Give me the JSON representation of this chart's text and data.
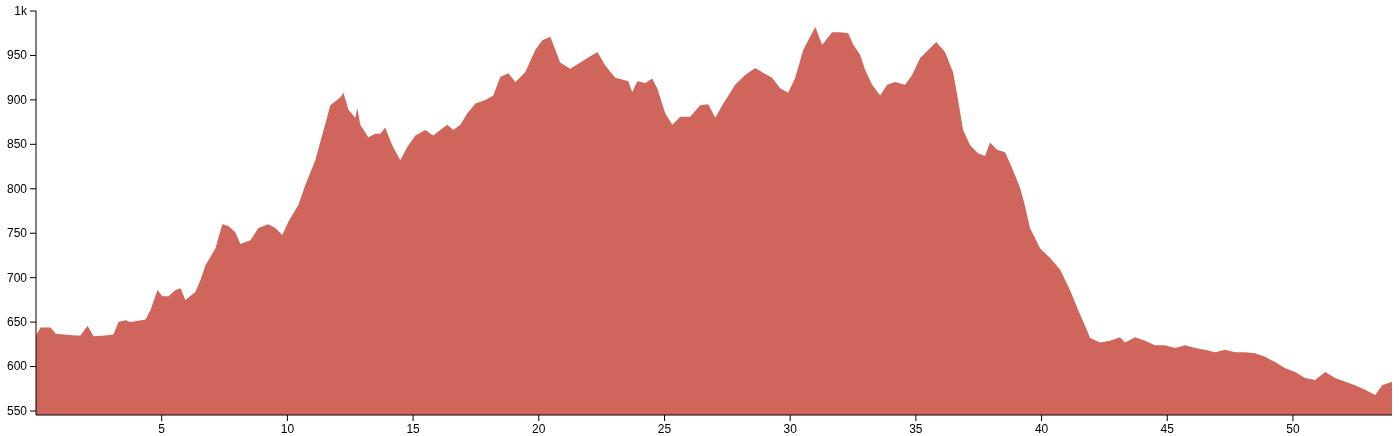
{
  "chart_data": {
    "type": "area",
    "color": "#d0665b",
    "x": [
      0,
      0.18,
      0.58,
      0.78,
      1.57,
      1.77,
      2.05,
      2.29,
      2.76,
      3.08,
      3.28,
      3.56,
      3.76,
      4.36,
      4.56,
      4.83,
      5.03,
      5.27,
      5.55,
      5.75,
      5.94,
      6.34,
      6.54,
      6.74,
      7.14,
      7.41,
      7.65,
      7.93,
      8.13,
      8.53,
      8.85,
      9.24,
      9.52,
      9.8,
      10.04,
      10.44,
      10.71,
      11.11,
      11.71,
      12.11,
      12.23,
      12.43,
      12.7,
      12.78,
      12.9,
      13.22,
      13.5,
      13.7,
      13.89,
      14.17,
      14.49,
      14.77,
      15.09,
      15.49,
      15.8,
      16.08,
      16.36,
      16.6,
      16.88,
      17.16,
      17.48,
      17.87,
      18.19,
      18.47,
      18.79,
      19.07,
      19.46,
      19.86,
      20.14,
      20.46,
      20.85,
      21.25,
      21.65,
      22.05,
      22.33,
      22.64,
      23.04,
      23.32,
      23.56,
      23.72,
      23.92,
      24.24,
      24.51,
      24.71,
      25.03,
      25.31,
      25.63,
      26.02,
      26.42,
      26.74,
      27.02,
      27.3,
      27.81,
      28.21,
      28.61,
      29.01,
      29.28,
      29.6,
      29.92,
      30.2,
      30.52,
      30.72,
      31,
      31.27,
      31.67,
      31.99,
      32.31,
      32.51,
      32.78,
      32.98,
      33.26,
      33.58,
      33.86,
      34.17,
      34.57,
      34.85,
      35.17,
      35.49,
      35.81,
      36.16,
      36.48,
      36.68,
      36.88,
      37.16,
      37.47,
      37.75,
      37.95,
      38.23,
      38.55,
      38.83,
      39.15,
      39.34,
      39.54,
      39.94,
      40.34,
      40.74,
      41.13,
      41.45,
      41.73,
      41.93,
      42.33,
      42.72,
      43.12,
      43.32,
      43.72,
      44.12,
      44.51,
      44.91,
      45.31,
      45.71,
      46.11,
      46.5,
      46.9,
      47.3,
      47.7,
      48.1,
      48.49,
      48.89,
      49.29,
      49.69,
      50.09,
      50.48,
      50.88,
      51.28,
      51.68,
      52.08,
      52.47,
      52.87,
      53.27,
      53.55,
      53.94
    ],
    "values": [
      635,
      644,
      644,
      637,
      635,
      635,
      646,
      634,
      635,
      636,
      650,
      652,
      650,
      653,
      664,
      686,
      679,
      679,
      686,
      688,
      675,
      684,
      697,
      714,
      733,
      760,
      758,
      751,
      738,
      742,
      756,
      760,
      756,
      748,
      763,
      782,
      804,
      832,
      894,
      903,
      908,
      889,
      880,
      891,
      872,
      858,
      862,
      862,
      869,
      849,
      832,
      847,
      860,
      866,
      860,
      866,
      872,
      866,
      872,
      885,
      896,
      900,
      905,
      926,
      930,
      920,
      931,
      956,
      967,
      971,
      942,
      935,
      942,
      949,
      954,
      939,
      925,
      923,
      921,
      909,
      921,
      919,
      924,
      913,
      885,
      872,
      881,
      881,
      894,
      895,
      880,
      894,
      917,
      928,
      936,
      929,
      925,
      913,
      908,
      925,
      956,
      967,
      982,
      962,
      976,
      976,
      975,
      962,
      951,
      934,
      917,
      905,
      917,
      920,
      917,
      928,
      947,
      956,
      965,
      954,
      931,
      900,
      866,
      849,
      840,
      837,
      852,
      844,
      841,
      823,
      801,
      781,
      756,
      733,
      722,
      709,
      686,
      664,
      646,
      632,
      627,
      629,
      633,
      627,
      633,
      629,
      624,
      624,
      621,
      624,
      621,
      619,
      616,
      619,
      616,
      616,
      615,
      611,
      605,
      598,
      594,
      587,
      585,
      594,
      587,
      583,
      579,
      574,
      568,
      579,
      583
    ],
    "xlim": [
      0,
      53.94
    ],
    "xticks": [
      5,
      10,
      15,
      20,
      25,
      30,
      35,
      40,
      45,
      50
    ],
    "ylim": [
      545.5,
      1000
    ],
    "yticks": [
      550,
      600,
      650,
      700,
      750,
      800,
      850,
      900,
      950,
      {
        "value": 1000,
        "label": "1k"
      }
    ]
  }
}
